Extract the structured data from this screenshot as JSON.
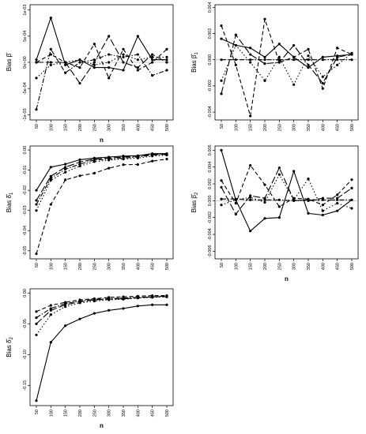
{
  "figure": {
    "layout": "3 rows x 2 columns, bottom-right cell empty",
    "line_color": "#000000",
    "reference_line_color": "#bbbbbb",
    "linestyles": [
      "solid",
      "dashed",
      "dotted",
      "dashdot",
      "longdash"
    ]
  },
  "chart_data": [
    {
      "type": "line",
      "ylabel_main": "Bias",
      "ylabel_symbol": "β̂",
      "ylabel_sub": "",
      "xlabel": "n",
      "x": [
        50,
        100,
        150,
        200,
        250,
        300,
        350,
        400,
        450,
        500
      ],
      "x_ticks": [
        "50",
        "100",
        "150",
        "200",
        "250",
        "300",
        "350",
        "400",
        "450",
        "500"
      ],
      "ylim": [
        -0.0011,
        0.0011
      ],
      "y_ticks": [
        -0.001,
        -0.0005,
        0,
        0.0005,
        0.001
      ],
      "y_tick_labels": [
        "-1e-03",
        "-5e-04",
        "0e+00",
        "5e-04",
        "1e-03"
      ],
      "y_tick_rotate": true,
      "reference_line": 0,
      "series": [
        {
          "style": "solid",
          "values": [
            5e-05,
            0.00085,
            -5e-05,
            5e-05,
            -0.0001,
            -0.0001,
            -0.00015,
            0.0005,
            5e-05,
            5e-05
          ]
        },
        {
          "style": "dashed",
          "values": [
            0.0,
            0.00015,
            0.0,
            -0.0001,
            0.00035,
            -0.0003,
            0.00025,
            -0.00015,
            0.0,
            0.00025
          ]
        },
        {
          "style": "dotted",
          "values": [
            -0.0003,
            -5e-05,
            0.0,
            5e-05,
            -5e-05,
            0.0,
            0.00015,
            5e-05,
            0.0001,
            0.0001
          ]
        },
        {
          "style": "dashdot",
          "values": [
            -0.0009,
            0.00025,
            -0.0002,
            0.0,
            5e-05,
            0.00015,
            0.0001,
            0.00015,
            -0.00025,
            -0.00015
          ]
        },
        {
          "style": "longdash",
          "values": [
            0.0,
            0.0,
            0.0,
            -0.0004,
            0.0,
            0.0005,
            0.0,
            -0.0001,
            0.00015,
            0.0
          ]
        }
      ]
    },
    {
      "type": "line",
      "ylabel_main": "Bias",
      "ylabel_symbol": "β̂",
      "ylabel_sub": "1",
      "xlabel": "",
      "x": [
        50,
        100,
        150,
        200,
        250,
        300,
        350,
        400,
        450,
        500
      ],
      "x_ticks": [
        "50",
        "100",
        "150",
        "200",
        "250",
        "300",
        "350",
        "400",
        "450",
        "500"
      ],
      "ylim": [
        -0.0046,
        0.0042
      ],
      "y_ticks": [
        -0.004,
        -0.002,
        0,
        0.002,
        0.004
      ],
      "y_tick_labels": [
        "-0.004",
        "-0.002",
        "0.000",
        "0.002",
        "0.004"
      ],
      "y_tick_rotate": true,
      "reference_line": 0,
      "series": [
        {
          "style": "solid",
          "values": [
            0.0016,
            0.0011,
            0.0009,
            0.0002,
            0.0012,
            0.0002,
            -0.0006,
            0.0002,
            0.0003,
            0.0004
          ]
        },
        {
          "style": "dashed",
          "values": [
            0.0026,
            -0.0004,
            -0.0043,
            0.0031,
            -0.0002,
            0.0002,
            0.0008,
            -0.0022,
            0.0009,
            0.0004
          ]
        },
        {
          "style": "dotted",
          "values": [
            -0.0016,
            0.0011,
            -0.0002,
            -0.0016,
            0.0002,
            -0.0019,
            0.0003,
            -0.0013,
            -0.0004,
            0.0005
          ]
        },
        {
          "style": "dashdot",
          "values": [
            0.0,
            0.0,
            0.0,
            0.0,
            0.0,
            0.0,
            0.0,
            0.0,
            0.0,
            0.0
          ]
        },
        {
          "style": "longdash",
          "values": [
            -0.0026,
            0.0019,
            0.0004,
            -0.0003,
            -0.0002,
            0.0011,
            -0.0004,
            -0.0018,
            0.0002,
            0.0004
          ]
        }
      ]
    },
    {
      "type": "line",
      "ylabel_main": "Bias",
      "ylabel_symbol": "δ̂",
      "ylabel_sub": "1",
      "xlabel": "",
      "x": [
        50,
        100,
        150,
        200,
        250,
        300,
        350,
        400,
        450,
        500
      ],
      "x_ticks": [
        "50",
        "100",
        "150",
        "200",
        "250",
        "300",
        "350",
        "400",
        "450",
        "500"
      ],
      "ylim": [
        -0.054,
        0.002
      ],
      "y_ticks": [
        -0.05,
        -0.04,
        -0.03,
        -0.02,
        -0.01,
        0
      ],
      "y_tick_labels": [
        "-0.05",
        "-0.04",
        "-0.03",
        "-0.02",
        "-0.01",
        "0.00"
      ],
      "y_tick_rotate": true,
      "reference_line": null,
      "series": [
        {
          "style": "solid",
          "values": [
            -0.02,
            -0.0085,
            -0.007,
            -0.0048,
            -0.004,
            -0.0035,
            -0.003,
            -0.0028,
            -0.0018,
            -0.0018
          ]
        },
        {
          "style": "dashed",
          "values": [
            -0.0515,
            -0.027,
            -0.0148,
            -0.0128,
            -0.0115,
            -0.009,
            -0.0073,
            -0.0072,
            -0.0055,
            -0.0045
          ]
        },
        {
          "style": "dotted",
          "values": [
            -0.03,
            -0.015,
            -0.011,
            -0.008,
            -0.0058,
            -0.005,
            -0.0045,
            -0.004,
            -0.003,
            -0.0025
          ]
        },
        {
          "style": "dashdot",
          "values": [
            -0.027,
            -0.014,
            -0.0095,
            -0.007,
            -0.005,
            -0.0045,
            -0.004,
            -0.0035,
            -0.0025,
            -0.0022
          ]
        },
        {
          "style": "longdash",
          "values": [
            -0.025,
            -0.013,
            -0.0085,
            -0.006,
            -0.0045,
            -0.004,
            -0.0035,
            -0.003,
            -0.0022,
            -0.002
          ]
        }
      ]
    },
    {
      "type": "line",
      "ylabel_main": "Bias",
      "ylabel_symbol": "β̂",
      "ylabel_sub": "2",
      "xlabel": "n",
      "x": [
        50,
        100,
        150,
        200,
        250,
        300,
        350,
        400,
        450,
        500
      ],
      "x_ticks": [
        "50",
        "100",
        "150",
        "200",
        "250",
        "300",
        "350",
        "400",
        "450",
        "500"
      ],
      "ylim": [
        -0.0069,
        0.0065
      ],
      "y_ticks": [
        -0.006,
        -0.004,
        -0.002,
        0,
        0.002,
        0.004,
        0.006
      ],
      "y_tick_labels": [
        "-0.006",
        "-0.004",
        "-0.002",
        "0.000",
        "0.002",
        "0.004",
        "0.006"
      ],
      "y_tick_rotate": true,
      "reference_line": 0,
      "series": [
        {
          "style": "solid",
          "values": [
            0.006,
            0.0001,
            -0.0036,
            -0.0021,
            -0.002,
            0.0035,
            -0.0015,
            -0.0017,
            -0.0012,
            0.0001
          ]
        },
        {
          "style": "dashed",
          "values": [
            0.0024,
            -0.0003,
            0.0042,
            0.0019,
            -0.0007,
            0.0003,
            0.0002,
            -0.0005,
            0.0007,
            0.0025
          ]
        },
        {
          "style": "dotted",
          "values": [
            -0.0005,
            0.0001,
            0.0004,
            -0.0002,
            0.0031,
            0.0001,
            0.0026,
            -0.0012,
            -0.0003,
            -0.0009
          ]
        },
        {
          "style": "dashdot",
          "values": [
            0.0002,
            0.0002,
            0.0001,
            0.0001,
            0.0001,
            0.0,
            0.0001,
            0.0001,
            0.0001,
            0.0001
          ]
        },
        {
          "style": "longdash",
          "values": [
            0.0016,
            -0.0016,
            0.0006,
            0.0003,
            0.0039,
            0.0001,
            0.0,
            0.0003,
            0.0003,
            0.0015
          ]
        }
      ]
    },
    {
      "type": "line",
      "ylabel_main": "Bias",
      "ylabel_symbol": "δ̂",
      "ylabel_sub": "2",
      "xlabel": "n",
      "x": [
        50,
        100,
        150,
        200,
        250,
        300,
        350,
        400,
        450,
        500
      ],
      "x_ticks": [
        "50",
        "100",
        "150",
        "200",
        "250",
        "300",
        "350",
        "400",
        "450",
        "500"
      ],
      "ylim": [
        -0.183,
        0.007
      ],
      "y_ticks": [
        -0.15,
        -0.1,
        -0.05,
        0
      ],
      "y_tick_labels": [
        "-0.15",
        "-0.10",
        "-0.05",
        "0.00"
      ],
      "y_tick_rotate": true,
      "reference_line": null,
      "series": [
        {
          "style": "solid",
          "values": [
            -0.175,
            -0.08,
            -0.053,
            -0.042,
            -0.033,
            -0.028,
            -0.025,
            -0.021,
            -0.019,
            -0.019
          ]
        },
        {
          "style": "dashed",
          "values": [
            -0.03,
            -0.02,
            -0.015,
            -0.011,
            -0.009,
            -0.007,
            -0.006,
            -0.005,
            -0.004,
            -0.004
          ]
        },
        {
          "style": "dotted",
          "values": [
            -0.068,
            -0.035,
            -0.022,
            -0.016,
            -0.013,
            -0.011,
            -0.01,
            -0.008,
            -0.007,
            -0.006
          ]
        },
        {
          "style": "dashdot",
          "values": [
            -0.04,
            -0.025,
            -0.017,
            -0.013,
            -0.01,
            -0.009,
            -0.008,
            -0.007,
            -0.006,
            -0.005
          ]
        },
        {
          "style": "longdash",
          "values": [
            -0.05,
            -0.028,
            -0.019,
            -0.014,
            -0.011,
            -0.01,
            -0.009,
            -0.008,
            -0.006,
            -0.006
          ]
        }
      ]
    }
  ]
}
